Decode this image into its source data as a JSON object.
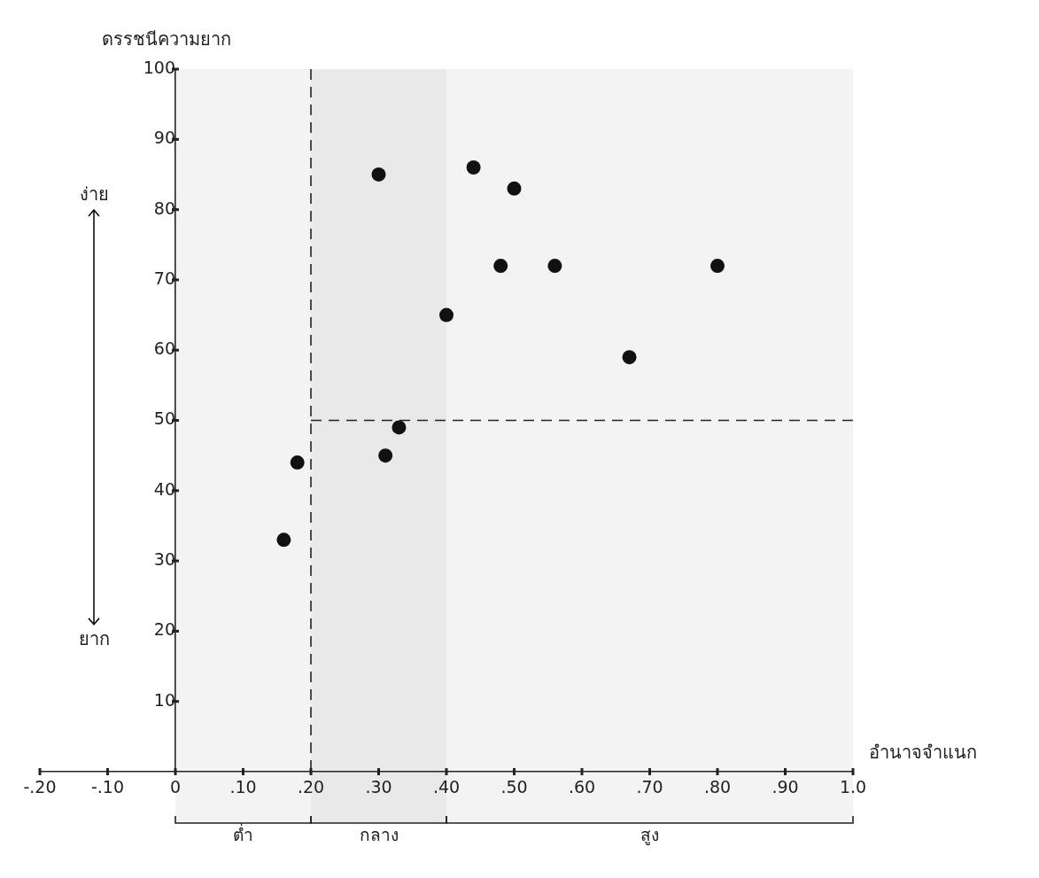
{
  "chart_data": {
    "type": "scatter",
    "ylabel": "ดรรชนีความยาก",
    "xlabel": "อำนาจจำแนก",
    "series": [
      {
        "color": "#111111",
        "x": [
          0.3,
          0.44,
          0.5,
          0.48,
          0.56,
          0.8,
          0.4,
          0.67,
          0.33,
          0.31,
          0.18,
          0.16
        ],
        "values": [
          85,
          86,
          83,
          72,
          72,
          72,
          65,
          59,
          49,
          45,
          44,
          33
        ]
      }
    ],
    "xlim": [
      -0.2,
      1.0
    ],
    "xticks": [
      {
        "value": -0.2,
        "label": "-.20"
      },
      {
        "value": -0.1,
        "label": "-.10"
      },
      0,
      {
        "value": 0.1,
        "label": ".10"
      },
      {
        "value": 0.2,
        "label": ".20"
      },
      {
        "value": 0.3,
        "label": ".30"
      },
      {
        "value": 0.4,
        "label": ".40"
      },
      {
        "value": 0.5,
        "label": ".50"
      },
      {
        "value": 0.6,
        "label": ".60"
      },
      {
        "value": 0.7,
        "label": ".70"
      },
      {
        "value": 0.8,
        "label": ".80"
      },
      {
        "value": 0.9,
        "label": ".90"
      },
      {
        "value": 1.0,
        "label": "1.0"
      }
    ],
    "ylim": [
      0,
      100
    ],
    "yticks": [
      10,
      20,
      30,
      40,
      50,
      60,
      70,
      80,
      90,
      100
    ],
    "ref_lines": [
      {
        "axis": "x",
        "value": 0.2,
        "line_style": "dashed"
      },
      {
        "axis": "y",
        "value": 50,
        "line_style": "dashed"
      }
    ],
    "bands": [
      {
        "axis": "x",
        "from": 0,
        "to": 0.2,
        "label": "ต่ำ",
        "color": "#f3f3f3"
      },
      {
        "axis": "x",
        "from": 0.2,
        "to": 0.4,
        "label": "กลาง",
        "color": "#e9e9e9"
      },
      {
        "axis": "x",
        "from": 0.4,
        "to": 1.0,
        "label": "สูง",
        "color": "#f3f3f3"
      }
    ],
    "annotations": [
      "ง่าย",
      "ยาก"
    ],
    "marker": "circle",
    "legend": false,
    "grid": false
  }
}
